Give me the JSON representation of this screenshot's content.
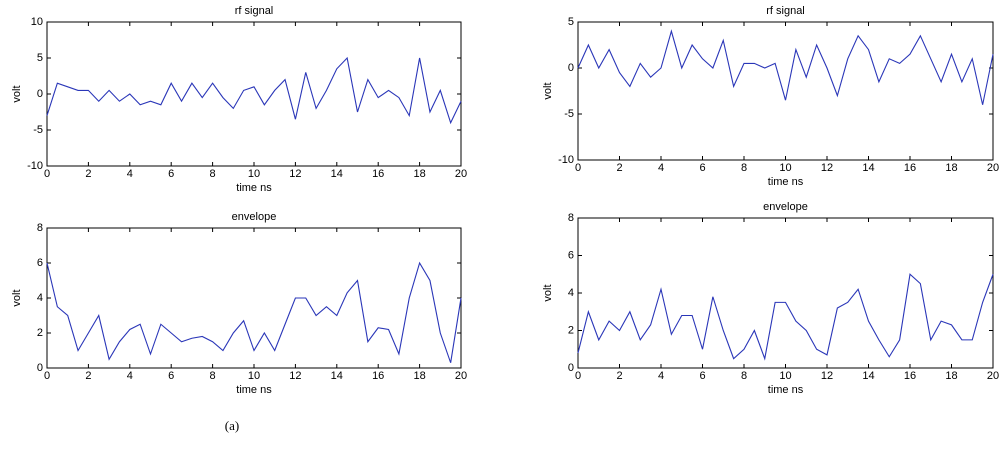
{
  "chart_data": [
    {
      "type": "line",
      "title": "rf signal",
      "xlabel": "time ns",
      "ylabel": "volt",
      "x": [
        0,
        0.5,
        1,
        1.5,
        2,
        2.5,
        3,
        3.5,
        4,
        4.5,
        5,
        5.5,
        6,
        6.5,
        7,
        7.5,
        8,
        8.5,
        9,
        9.5,
        10,
        10.5,
        11,
        11.5,
        12,
        12.5,
        13,
        13.5,
        14,
        14.5,
        15,
        15.5,
        16,
        16.5,
        17,
        17.5,
        18,
        18.5,
        19,
        19.5,
        20
      ],
      "series": [
        {
          "color": "#2a36b8",
          "values": [
            -3,
            1.5,
            1,
            0.5,
            0.5,
            -1,
            0.5,
            -1,
            0,
            -1.5,
            -1,
            -1.5,
            1.5,
            -1,
            1.5,
            -0.5,
            1.5,
            -0.5,
            -2,
            0.5,
            1,
            -1.5,
            0.5,
            2,
            -3.5,
            3,
            -2,
            0.5,
            3.5,
            5,
            -2.5,
            2,
            -0.5,
            0.5,
            -0.5,
            -3,
            5,
            -2.5,
            0.5,
            -4,
            -1
          ]
        }
      ],
      "xlim": [
        0,
        20
      ],
      "xticks": [
        0,
        2,
        4,
        6,
        8,
        10,
        12,
        14,
        16,
        18,
        20
      ],
      "ylim": [
        -10,
        10
      ],
      "yticks": [
        -10,
        -5,
        0,
        5,
        10
      ]
    },
    {
      "type": "line",
      "title": "envelope",
      "xlabel": "time ns",
      "ylabel": "volt",
      "x": [
        0,
        0.5,
        1,
        1.5,
        2,
        2.5,
        3,
        3.5,
        4,
        4.5,
        5,
        5.5,
        6,
        6.5,
        7,
        7.5,
        8,
        8.5,
        9,
        9.5,
        10,
        10.5,
        11,
        11.5,
        12,
        12.5,
        13,
        13.5,
        14,
        14.5,
        15,
        15.5,
        16,
        16.5,
        17,
        17.5,
        18,
        18.5,
        19,
        19.5,
        20
      ],
      "series": [
        {
          "color": "#2a36b8",
          "values": [
            6,
            3.5,
            3,
            1,
            2,
            3,
            0.5,
            1.5,
            2.2,
            2.5,
            0.8,
            2.5,
            2,
            1.5,
            1.7,
            1.8,
            1.5,
            1,
            2,
            2.7,
            1,
            2,
            1,
            2.5,
            4,
            4,
            3,
            3.5,
            3,
            4.3,
            5,
            1.5,
            2.3,
            2.2,
            0.8,
            4,
            6,
            5,
            2,
            0.3,
            4
          ]
        }
      ],
      "xlim": [
        0,
        20
      ],
      "xticks": [
        0,
        2,
        4,
        6,
        8,
        10,
        12,
        14,
        16,
        18,
        20
      ],
      "ylim": [
        0,
        8
      ],
      "yticks": [
        0,
        2,
        4,
        6,
        8
      ]
    },
    {
      "type": "line",
      "title": "rf signal",
      "xlabel": "time ns",
      "ylabel": "volt",
      "x": [
        0,
        0.5,
        1,
        1.5,
        2,
        2.5,
        3,
        3.5,
        4,
        4.5,
        5,
        5.5,
        6,
        6.5,
        7,
        7.5,
        8,
        8.5,
        9,
        9.5,
        10,
        10.5,
        11,
        11.5,
        12,
        12.5,
        13,
        13.5,
        14,
        14.5,
        15,
        15.5,
        16,
        16.5,
        17,
        17.5,
        18,
        18.5,
        19,
        19.5,
        20
      ],
      "series": [
        {
          "color": "#2a36b8",
          "values": [
            0,
            2.5,
            0,
            2,
            -0.5,
            -2,
            0.5,
            -1,
            0,
            4,
            0,
            2.5,
            1,
            0,
            3,
            -2,
            0.5,
            0.5,
            0,
            0.5,
            -3.5,
            2,
            -1,
            2.5,
            0,
            -3,
            1,
            3.5,
            2,
            -1.5,
            1,
            0.5,
            1.5,
            3.5,
            1,
            -1.5,
            1.5,
            -1.5,
            1,
            -4,
            1.5
          ]
        }
      ],
      "xlim": [
        0,
        20
      ],
      "xticks": [
        0,
        2,
        4,
        6,
        8,
        10,
        12,
        14,
        16,
        18,
        20
      ],
      "ylim": [
        -10,
        5
      ],
      "yticks": [
        -10,
        -5,
        0,
        5
      ]
    },
    {
      "type": "line",
      "title": "envelope",
      "xlabel": "time ns",
      "ylabel": "volt",
      "x": [
        0,
        0.5,
        1,
        1.5,
        2,
        2.5,
        3,
        3.5,
        4,
        4.5,
        5,
        5.5,
        6,
        6.5,
        7,
        7.5,
        8,
        8.5,
        9,
        9.5,
        10,
        10.5,
        11,
        11.5,
        12,
        12.5,
        13,
        13.5,
        14,
        14.5,
        15,
        15.5,
        16,
        16.5,
        17,
        17.5,
        18,
        18.5,
        19,
        19.5,
        20
      ],
      "series": [
        {
          "color": "#2a36b8",
          "values": [
            0.8,
            3,
            1.5,
            2.5,
            2,
            3,
            1.5,
            2.3,
            4.2,
            1.8,
            2.8,
            2.8,
            1,
            3.8,
            2,
            0.5,
            1,
            2,
            0.5,
            3.5,
            3.5,
            2.5,
            2,
            1,
            0.7,
            3.2,
            3.5,
            4.2,
            2.5,
            1.5,
            0.6,
            1.5,
            5,
            4.5,
            1.5,
            2.5,
            2.3,
            1.5,
            1.5,
            3.5,
            5
          ]
        }
      ],
      "xlim": [
        0,
        20
      ],
      "xticks": [
        0,
        2,
        4,
        6,
        8,
        10,
        12,
        14,
        16,
        18,
        20
      ],
      "ylim": [
        0,
        8
      ],
      "yticks": [
        0,
        2,
        4,
        6,
        8
      ]
    }
  ],
  "caption": "(a)"
}
